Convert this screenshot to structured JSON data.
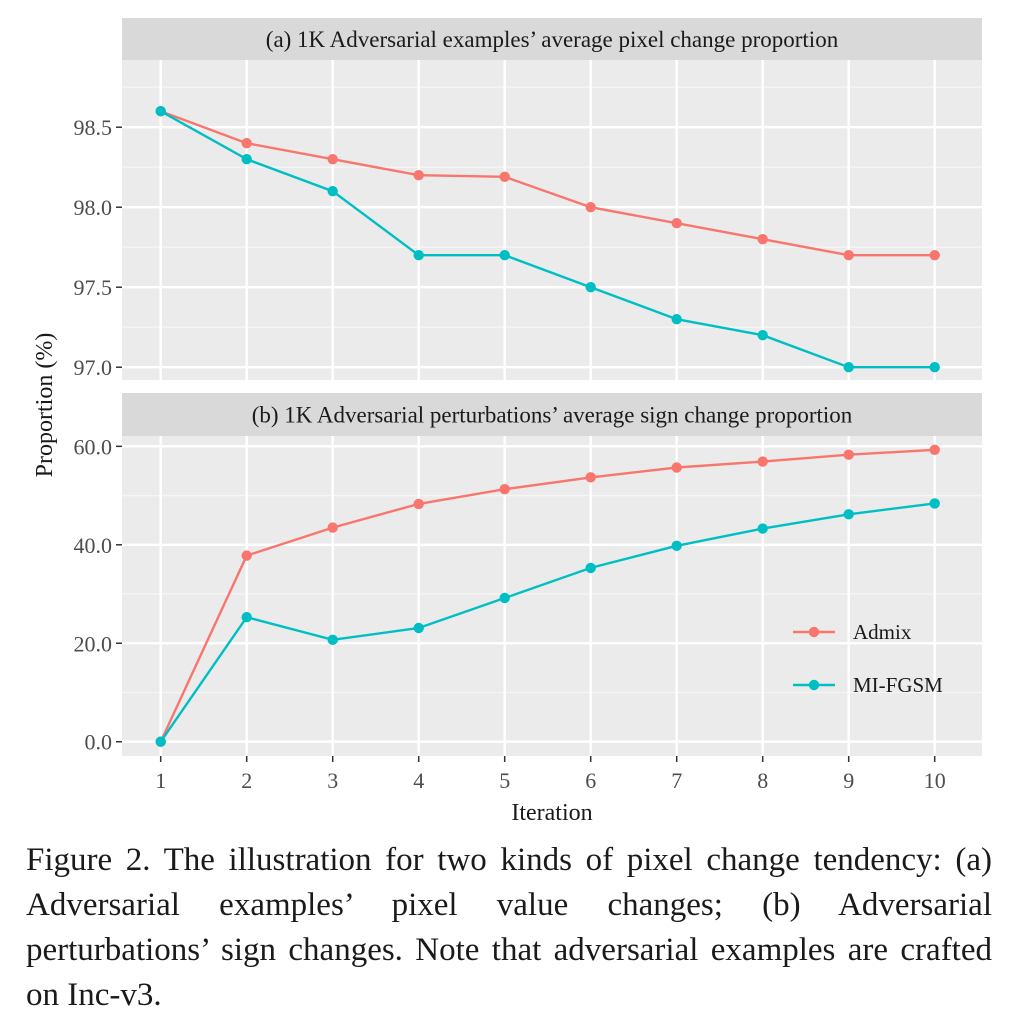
{
  "chart_data": [
    {
      "type": "line",
      "title": "(a) 1K Adversarial examples’ average pixel change proportion",
      "x": [
        1,
        2,
        3,
        4,
        5,
        6,
        7,
        8,
        9,
        10
      ],
      "series": [
        {
          "name": "Admix",
          "color": "#F8766D",
          "values": [
            98.6,
            98.4,
            98.3,
            98.2,
            98.19,
            98.0,
            97.9,
            97.8,
            97.7,
            97.7
          ]
        },
        {
          "name": "MI-FGSM",
          "color": "#00BFC4",
          "values": [
            98.6,
            98.3,
            98.1,
            97.7,
            97.7,
            97.5,
            97.3,
            97.2,
            97.0,
            97.0
          ]
        }
      ],
      "yticks": [
        "97.0",
        "97.5",
        "98.0",
        "98.5"
      ],
      "ylim": [
        96.92,
        98.92
      ]
    },
    {
      "type": "line",
      "title": "(b) 1K Adversarial perturbations’ average sign change proportion",
      "x": [
        1,
        2,
        3,
        4,
        5,
        6,
        7,
        8,
        9,
        10
      ],
      "series": [
        {
          "name": "Admix",
          "color": "#F8766D",
          "values": [
            0.0,
            37.8,
            43.5,
            48.3,
            51.3,
            53.7,
            55.7,
            56.9,
            58.3,
            59.3
          ]
        },
        {
          "name": "MI-FGSM",
          "color": "#00BFC4",
          "values": [
            0.0,
            25.3,
            20.7,
            23.1,
            29.2,
            35.3,
            39.8,
            43.3,
            46.2,
            48.4
          ]
        }
      ],
      "yticks": [
        "0.0",
        "20.0",
        "40.0",
        "60.0"
      ],
      "ylim": [
        -2.9,
        62.1
      ]
    }
  ],
  "xlabel": "Iteration",
  "ylabel": "Proportion (%)",
  "xtick_labels": [
    "1",
    "2",
    "3",
    "4",
    "5",
    "6",
    "7",
    "8",
    "9",
    "10"
  ],
  "legend": {
    "placement": "inside-right",
    "items": [
      "Admix",
      "MI-FGSM"
    ]
  },
  "caption": "Figure 2. The illustration for two kinds of pixel change tendency: (a) Adversarial examples’ pixel value changes; (b) Adversarial perturbations’ sign changes.  Note that adversarial examples are crafted on Inc-v3."
}
